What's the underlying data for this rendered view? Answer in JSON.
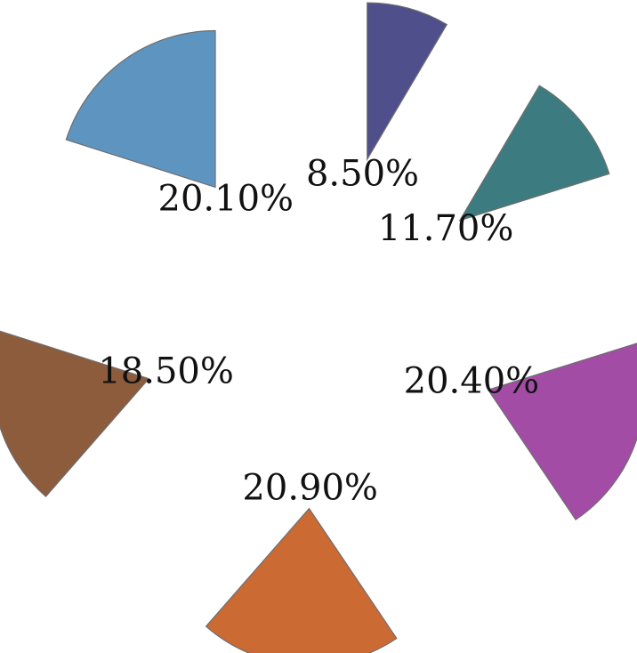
{
  "chart_data": {
    "type": "pie",
    "title": "",
    "exploded": true,
    "start_angle_deg": 0,
    "direction": "clockwise",
    "slices": [
      {
        "label": "8.50%",
        "value": 8.5,
        "color": "#4f4f8c"
      },
      {
        "label": "11.70%",
        "value": 11.7,
        "color": "#3c7c80"
      },
      {
        "label": "20.40%",
        "value": 20.4,
        "color": "#a34ca6"
      },
      {
        "label": "20.90%",
        "value": 20.9,
        "color": "#cc6a33"
      },
      {
        "label": "18.50%",
        "value": 18.5,
        "color": "#8c5c3c"
      },
      {
        "label": "20.10%",
        "value": 20.1,
        "color": "#5e94c0"
      }
    ],
    "legend": "none"
  }
}
